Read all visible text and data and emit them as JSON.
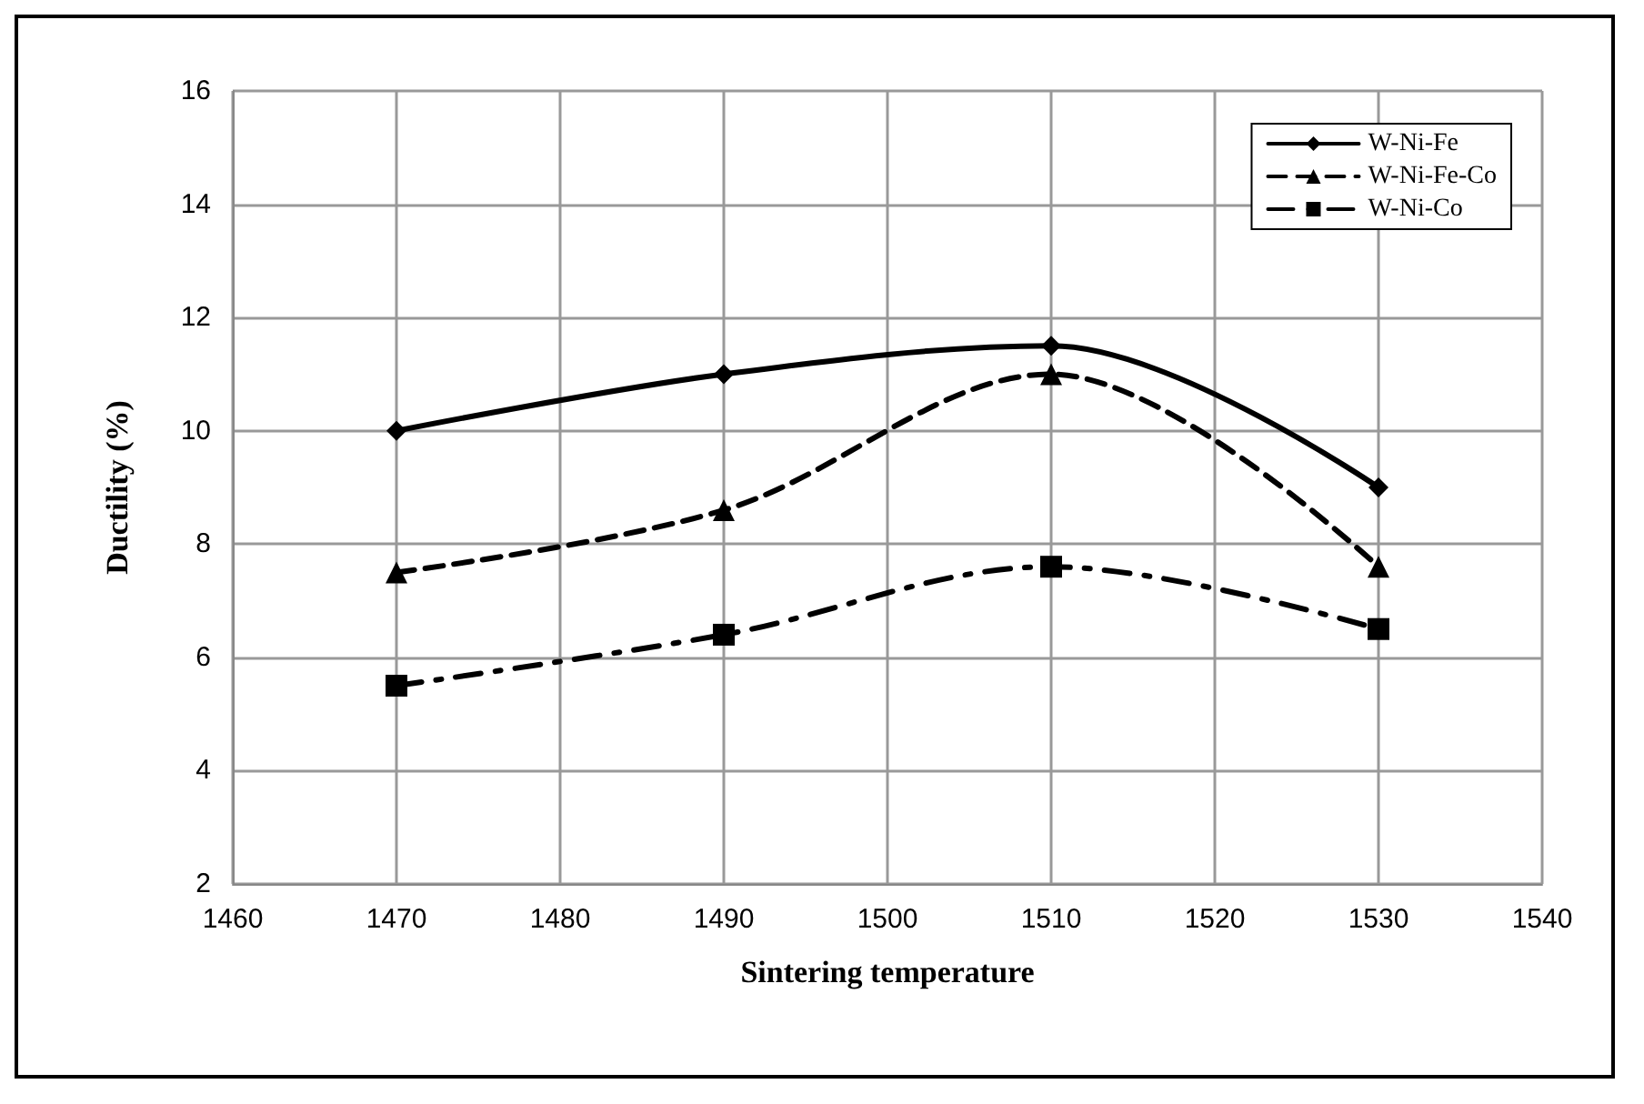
{
  "chart_data": {
    "type": "line",
    "xlabel": "Sintering temperature",
    "ylabel": "Ductility (%)",
    "x": [
      1470,
      1490,
      1510,
      1530
    ],
    "series": [
      {
        "name": "W-Ni-Fe",
        "color": "#000000",
        "values": [
          10,
          11,
          11.5,
          9
        ],
        "marker": "diamond",
        "line_style": "solid"
      },
      {
        "name": "W-Ni-Fe-Co",
        "color": "#000000",
        "values": [
          7.5,
          8.6,
          11,
          7.6
        ],
        "marker": "triangle",
        "line_style": "dashed"
      },
      {
        "name": "W-Ni-Co",
        "color": "#000000",
        "values": [
          5.5,
          6.4,
          7.6,
          6.5
        ],
        "marker": "square",
        "line_style": "dashdot"
      }
    ],
    "xlim": [
      1460,
      1540
    ],
    "xticks": [
      1460,
      1470,
      1480,
      1490,
      1500,
      1510,
      1520,
      1530,
      1540
    ],
    "ylim": [
      2,
      16
    ],
    "yticks": [
      2,
      4,
      6,
      8,
      10,
      12,
      14,
      16
    ],
    "grid": true,
    "legend": "top right"
  }
}
